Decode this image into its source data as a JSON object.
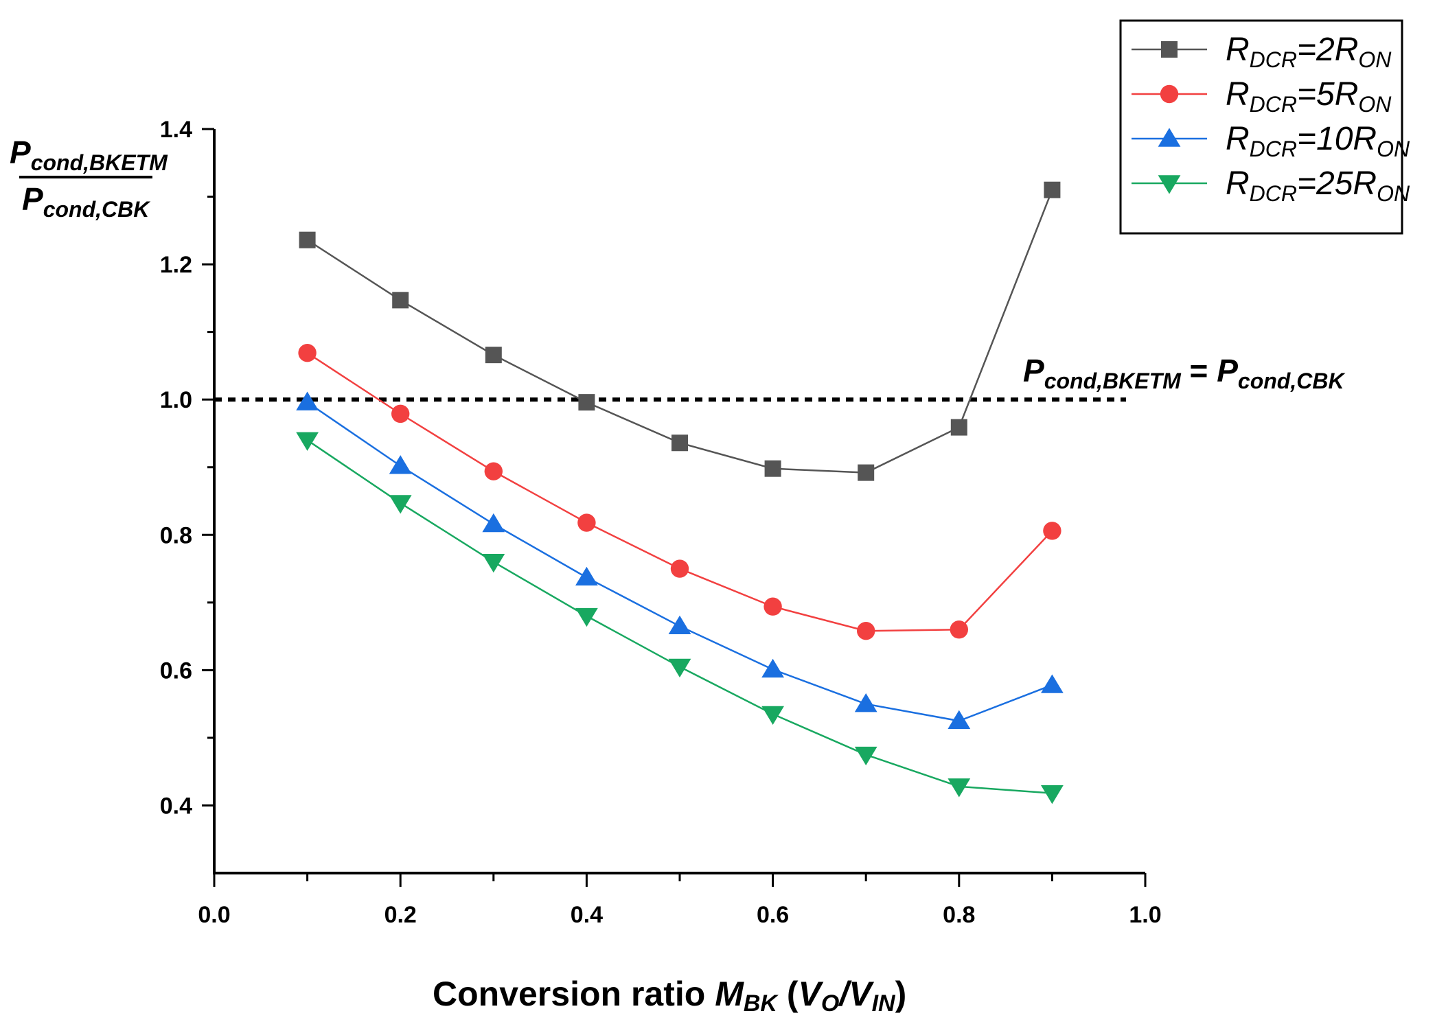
{
  "chart_data": {
    "type": "line",
    "xlabel": {
      "main": "Conversion ratio ",
      "m": "M",
      "m_sub": "BK",
      "paren_open": " (",
      "v": "V",
      "o_sub": "O",
      "slash": "/",
      "v2": "V",
      "in_sub": "IN",
      "paren_close": ")"
    },
    "ylabel": {
      "num": "P",
      "num_sub": "cond,BKETM",
      "den": "P",
      "den_sub": "cond,CBK"
    },
    "xlim": [
      0.0,
      1.0
    ],
    "ylim": [
      0.3,
      1.4
    ],
    "x_ticks": [
      0.0,
      0.2,
      0.4,
      0.6,
      0.8,
      1.0
    ],
    "x_tick_labels": [
      "0.0",
      "0.2",
      "0.4",
      "0.6",
      "0.8",
      "1.0"
    ],
    "y_ticks": [
      0.4,
      0.6,
      0.8,
      1.0,
      1.2,
      1.4
    ],
    "y_tick_labels": [
      "0.4",
      "0.6",
      "0.8",
      "1.0",
      "1.2",
      "1.4"
    ],
    "x": [
      0.1,
      0.2,
      0.3,
      0.4,
      0.5,
      0.6,
      0.7,
      0.8,
      0.9
    ],
    "series": [
      {
        "name": "RDCR=2RON",
        "label_r": "R",
        "label_sub": "DCR",
        "label_eq": "=2R",
        "label_sub2": "ON",
        "color": "#555555",
        "marker": "square",
        "values": [
          1.236,
          1.147,
          1.066,
          0.996,
          0.936,
          0.898,
          0.892,
          0.959,
          1.31
        ]
      },
      {
        "name": "RDCR=5RON",
        "label_r": "R",
        "label_sub": "DCR",
        "label_eq": "=5R",
        "label_sub2": "ON",
        "color": "#f24040",
        "marker": "circle",
        "values": [
          1.069,
          0.979,
          0.894,
          0.818,
          0.75,
          0.694,
          0.658,
          0.66,
          0.806
        ]
      },
      {
        "name": "RDCR=10RON",
        "label_r": "R",
        "label_sub": "DCR",
        "label_eq": "=10R",
        "label_sub2": "ON",
        "color": "#1a6fe0",
        "marker": "triangle-up",
        "values": [
          0.996,
          0.902,
          0.816,
          0.737,
          0.665,
          0.601,
          0.55,
          0.525,
          0.578
        ]
      },
      {
        "name": "RDCR=25RON",
        "label_r": "R",
        "label_sub": "DCR",
        "label_eq": "=25R",
        "label_sub2": "ON",
        "color": "#18a860",
        "marker": "triangle-down",
        "values": [
          0.94,
          0.847,
          0.76,
          0.68,
          0.605,
          0.535,
          0.475,
          0.428,
          0.418
        ]
      }
    ],
    "reference_line": {
      "y": 1.0,
      "style": "dotted",
      "label_p1": "P",
      "label_sub1": "cond,BKETM",
      "label_eq": " = ",
      "label_p2": "P",
      "label_sub2": "cond,CBK"
    },
    "legend_position": "top-right"
  }
}
